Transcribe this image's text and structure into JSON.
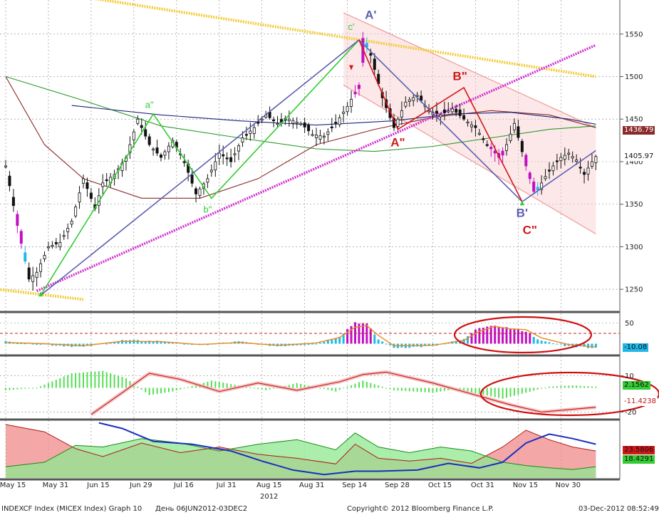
{
  "footer": {
    "left": "INDEXCF Index (MICEX Index) Graph 10",
    "period": "День 06JUN2012-03DEC2",
    "copyright": "Copyright© 2012 Bloomberg Finance L.P.",
    "timestamp": "03-Dec-2012 08:52:49"
  },
  "colors": {
    "up_candle": "#111111",
    "magenta": "#c010c0",
    "cyan": "#20b8e8",
    "green_ma": "#2a9a2a",
    "darkred_ma": "#8b2a2a",
    "navy_ma": "#1a237e",
    "yellow_line": "#f2cc3a",
    "wave_green": "#33cc33",
    "wave_blue": "#5d5fb0",
    "wave_red": "#d01818",
    "ellipse": "#d01010"
  },
  "chart_data": [
    {
      "type": "candlestick",
      "title": "",
      "x_tick_labels": [
        "May 15",
        "May 31",
        "Jun 15",
        "Jun 29",
        "Jul 16",
        "Jul 31",
        "Aug 15",
        "Aug 31",
        "Sep 14",
        "Sep 28",
        "Oct 15",
        "Oct 31",
        "Nov 15",
        "Nov 30"
      ],
      "year_label": "2012",
      "y_ticks": [
        1250,
        1300,
        1350,
        1400,
        1450,
        1500,
        1550
      ],
      "ylim": [
        1225,
        1590
      ],
      "last_value_badges": [
        {
          "label": "1436.79",
          "value": 1436.79
        },
        {
          "label": "1405.97",
          "value": 1405.97
        }
      ],
      "close_path": [
        [
          0,
          1395
        ],
        [
          3,
          1325
        ],
        [
          6,
          1262
        ],
        [
          8,
          1270
        ],
        [
          11,
          1300
        ],
        [
          14,
          1305
        ],
        [
          17,
          1330
        ],
        [
          20,
          1380
        ],
        [
          23,
          1345
        ],
        [
          25,
          1375
        ],
        [
          28,
          1385
        ],
        [
          31,
          1405
        ],
        [
          34,
          1450
        ],
        [
          37,
          1420
        ],
        [
          40,
          1405
        ],
        [
          43,
          1425
        ],
        [
          46,
          1400
        ],
        [
          49,
          1362
        ],
        [
          52,
          1380
        ],
        [
          55,
          1410
        ],
        [
          58,
          1400
        ],
        [
          61,
          1428
        ],
        [
          64,
          1440
        ],
        [
          67,
          1455
        ],
        [
          70,
          1445
        ],
        [
          73,
          1450
        ],
        [
          76,
          1445
        ],
        [
          79,
          1432
        ],
        [
          82,
          1430
        ],
        [
          85,
          1445
        ],
        [
          88,
          1465
        ],
        [
          91,
          1490
        ],
        [
          92,
          1545
        ],
        [
          94,
          1525
        ],
        [
          97,
          1475
        ],
        [
          100,
          1440
        ],
        [
          103,
          1470
        ],
        [
          106,
          1478
        ],
        [
          109,
          1460
        ],
        [
          112,
          1455
        ],
        [
          115,
          1462
        ],
        [
          118,
          1450
        ],
        [
          121,
          1440
        ],
        [
          124,
          1420
        ],
        [
          127,
          1405
        ],
        [
          129,
          1420
        ],
        [
          131,
          1445
        ],
        [
          134,
          1395
        ],
        [
          136,
          1365
        ],
        [
          138,
          1375
        ],
        [
          140,
          1390
        ],
        [
          143,
          1405
        ],
        [
          145,
          1410
        ],
        [
          147,
          1402
        ],
        [
          149,
          1385
        ],
        [
          151,
          1400
        ],
        [
          152,
          1406
        ]
      ],
      "moving_averages": [
        {
          "color_key": "green_ma",
          "points": [
            [
              0,
              1500
            ],
            [
              20,
              1472
            ],
            [
              40,
              1442
            ],
            [
              60,
              1428
            ],
            [
              80,
              1415
            ],
            [
              95,
              1412
            ],
            [
              110,
              1418
            ],
            [
              125,
              1428
            ],
            [
              140,
              1438
            ],
            [
              152,
              1442
            ]
          ]
        },
        {
          "color_key": "darkred_ma",
          "points": [
            [
              0,
              1500
            ],
            [
              10,
              1420
            ],
            [
              20,
              1380
            ],
            [
              35,
              1357
            ],
            [
              50,
              1357
            ],
            [
              65,
              1380
            ],
            [
              80,
              1420
            ],
            [
              95,
              1438
            ],
            [
              110,
              1452
            ],
            [
              125,
              1460
            ],
            [
              140,
              1455
            ],
            [
              152,
              1440
            ]
          ]
        },
        {
          "color_key": "navy_ma",
          "points": [
            [
              17,
              1466
            ],
            [
              40,
              1455
            ],
            [
              60,
              1448
            ],
            [
              80,
              1443
            ],
            [
              100,
              1448
            ],
            [
              115,
              1456
            ],
            [
              130,
              1458
            ],
            [
              145,
              1450
            ],
            [
              152,
              1444
            ]
          ]
        }
      ],
      "trendlines": [
        {
          "kind": "yellow_dotted",
          "points": [
            [
              -10,
              1615
            ],
            [
              152,
              1500
            ]
          ]
        },
        {
          "kind": "yellow_dotted",
          "points": [
            [
              -2,
              1250
            ],
            [
              20,
              1238
            ]
          ]
        },
        {
          "kind": "magenta_dotted",
          "points": [
            [
              8,
              1248
            ],
            [
              152,
              1537
            ]
          ]
        },
        {
          "kind": "channel_upper",
          "points": [
            [
              87,
              1575
            ],
            [
              152,
              1440
            ]
          ]
        },
        {
          "kind": "channel_lower",
          "points": [
            [
              87,
              1490
            ],
            [
              152,
              1315
            ]
          ]
        }
      ],
      "wave_paths": [
        {
          "color_key": "wave_green",
          "points": [
            [
              9,
              1243
            ],
            [
              38,
              1456
            ],
            [
              53,
              1357
            ],
            [
              91,
              1543
            ]
          ]
        },
        {
          "color_key": "wave_blue",
          "points": [
            [
              9,
              1243
            ],
            [
              91,
              1543
            ],
            [
              133,
              1353
            ],
            [
              152,
              1413
            ]
          ]
        },
        {
          "color_key": "wave_red",
          "points": [
            [
              91,
              1543
            ],
            [
              101,
              1438
            ],
            [
              118,
              1487
            ],
            [
              133,
              1353
            ]
          ]
        }
      ],
      "wave_labels": [
        {
          "text": "A'",
          "x": 94,
          "y": 1568,
          "color_key": "wave_blue",
          "size": "big"
        },
        {
          "text": "c'",
          "x": 89,
          "y": 1555,
          "color_key": "wave_green",
          "size": "small"
        },
        {
          "text": "a\"",
          "x": 37,
          "y": 1463,
          "color_key": "wave_green",
          "size": "small"
        },
        {
          "text": "b\"",
          "x": 52,
          "y": 1340,
          "color_key": "wave_green",
          "size": "small"
        },
        {
          "text": "A\"",
          "x": 101,
          "y": 1418,
          "color_key": "wave_red",
          "size": "big"
        },
        {
          "text": "B\"",
          "x": 117,
          "y": 1496,
          "color_key": "wave_red",
          "size": "big"
        },
        {
          "text": "B'",
          "x": 133,
          "y": 1335,
          "color_key": "wave_blue",
          "size": "big"
        },
        {
          "text": "C\"",
          "x": 135,
          "y": 1315,
          "color_key": "wave_red",
          "size": "big"
        }
      ]
    },
    {
      "type": "bar",
      "title": "",
      "y_ticks": [
        50
      ],
      "ylim": [
        -25,
        70
      ],
      "reference_value": 25,
      "last_value_badges": [
        {
          "label": "-10.08",
          "value": -10.08
        }
      ],
      "bar_path": [
        [
          0,
          5
        ],
        [
          10,
          -2
        ],
        [
          20,
          -8
        ],
        [
          30,
          8
        ],
        [
          40,
          6
        ],
        [
          50,
          -4
        ],
        [
          60,
          5
        ],
        [
          70,
          -6
        ],
        [
          80,
          0
        ],
        [
          86,
          18
        ],
        [
          90,
          52
        ],
        [
          93,
          48
        ],
        [
          96,
          10
        ],
        [
          100,
          -10
        ],
        [
          110,
          -6
        ],
        [
          118,
          10
        ],
        [
          122,
          40
        ],
        [
          126,
          42
        ],
        [
          130,
          38
        ],
        [
          134,
          30
        ],
        [
          138,
          6
        ],
        [
          145,
          -6
        ],
        [
          152,
          -10
        ]
      ],
      "line_path": [
        [
          0,
          3
        ],
        [
          10,
          0
        ],
        [
          20,
          -5
        ],
        [
          30,
          6
        ],
        [
          40,
          5
        ],
        [
          50,
          -2
        ],
        [
          60,
          3
        ],
        [
          70,
          -4
        ],
        [
          80,
          2
        ],
        [
          86,
          15
        ],
        [
          90,
          40
        ],
        [
          93,
          44
        ],
        [
          96,
          20
        ],
        [
          100,
          -5
        ],
        [
          110,
          -4
        ],
        [
          118,
          8
        ],
        [
          122,
          30
        ],
        [
          126,
          42
        ],
        [
          130,
          36
        ],
        [
          134,
          34
        ],
        [
          138,
          14
        ],
        [
          145,
          -2
        ],
        [
          152,
          -8
        ]
      ]
    },
    {
      "type": "area",
      "title": "",
      "y_ticks": [
        10,
        -20
      ],
      "ylim": [
        -25,
        25
      ],
      "last_value_badges": [
        {
          "label": "2.1562",
          "value": 2.1562
        },
        {
          "label": "-11.4238",
          "value": -11.4238
        }
      ],
      "histogram_path": [
        [
          0,
          -2
        ],
        [
          8,
          0
        ],
        [
          17,
          12
        ],
        [
          25,
          14
        ],
        [
          31,
          8
        ],
        [
          37,
          -6
        ],
        [
          43,
          -3
        ],
        [
          53,
          6
        ],
        [
          60,
          2
        ],
        [
          67,
          -2
        ],
        [
          75,
          4
        ],
        [
          85,
          -3
        ],
        [
          92,
          6
        ],
        [
          96,
          2
        ],
        [
          100,
          -2
        ],
        [
          110,
          -4
        ],
        [
          116,
          -1
        ],
        [
          122,
          -5
        ],
        [
          128,
          -9
        ],
        [
          134,
          -4
        ],
        [
          140,
          1
        ],
        [
          146,
          2
        ],
        [
          152,
          1
        ]
      ],
      "signal_path": [
        [
          22,
          -22
        ],
        [
          30,
          -4
        ],
        [
          37,
          12
        ],
        [
          45,
          7
        ],
        [
          55,
          -3
        ],
        [
          65,
          4
        ],
        [
          75,
          -2
        ],
        [
          86,
          5
        ],
        [
          92,
          11
        ],
        [
          98,
          13
        ],
        [
          110,
          4
        ],
        [
          120,
          -5
        ],
        [
          130,
          -14
        ],
        [
          138,
          -20
        ],
        [
          145,
          -18
        ],
        [
          152,
          -16
        ]
      ]
    },
    {
      "type": "area",
      "title": "",
      "ylim": [
        0,
        100
      ],
      "last_value_badges": [
        {
          "label": "23.5806",
          "value": 23.5806
        },
        {
          "label": "18.4291",
          "value": 18.4291
        }
      ],
      "red_path": [
        [
          0,
          95
        ],
        [
          10,
          82
        ],
        [
          18,
          52
        ],
        [
          25,
          38
        ],
        [
          35,
          62
        ],
        [
          45,
          45
        ],
        [
          55,
          55
        ],
        [
          65,
          42
        ],
        [
          75,
          35
        ],
        [
          85,
          25
        ],
        [
          90,
          60
        ],
        [
          96,
          35
        ],
        [
          104,
          30
        ],
        [
          112,
          35
        ],
        [
          120,
          26
        ],
        [
          128,
          55
        ],
        [
          134,
          85
        ],
        [
          140,
          68
        ],
        [
          146,
          55
        ],
        [
          152,
          48
        ]
      ],
      "green_path": [
        [
          0,
          20
        ],
        [
          10,
          28
        ],
        [
          18,
          58
        ],
        [
          25,
          55
        ],
        [
          35,
          70
        ],
        [
          45,
          62
        ],
        [
          55,
          48
        ],
        [
          65,
          60
        ],
        [
          75,
          68
        ],
        [
          85,
          50
        ],
        [
          90,
          80
        ],
        [
          96,
          55
        ],
        [
          104,
          45
        ],
        [
          112,
          55
        ],
        [
          120,
          48
        ],
        [
          128,
          28
        ],
        [
          134,
          22
        ],
        [
          140,
          18
        ],
        [
          146,
          15
        ],
        [
          152,
          20
        ]
      ],
      "blue_path": [
        [
          24,
          98
        ],
        [
          30,
          88
        ],
        [
          38,
          65
        ],
        [
          48,
          60
        ],
        [
          58,
          48
        ],
        [
          66,
          30
        ],
        [
          74,
          14
        ],
        [
          82,
          6
        ],
        [
          90,
          12
        ],
        [
          96,
          12
        ],
        [
          106,
          14
        ],
        [
          114,
          26
        ],
        [
          122,
          18
        ],
        [
          128,
          28
        ],
        [
          134,
          62
        ],
        [
          140,
          78
        ],
        [
          146,
          70
        ],
        [
          152,
          60
        ]
      ]
    }
  ]
}
